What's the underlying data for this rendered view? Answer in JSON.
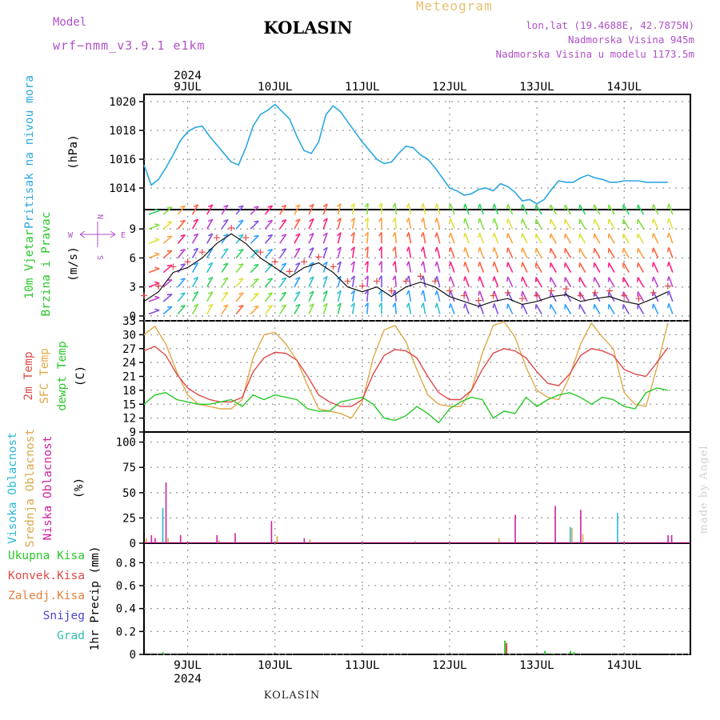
{
  "header": {
    "title": "KOLASIN",
    "meteogram": "Meteogram",
    "model_label": "Model",
    "model_name": "wrf−nmm_v3.9.1  e1km",
    "coords": "lon,lat (19.4688E, 42.7875N)",
    "altitude": "Nadmorska Visina 945m",
    "model_altitude": "Nadmorska Visina u modelu 1173.5m",
    "year": "2024"
  },
  "footer": {
    "location": "KOLASIN",
    "made_by": "made by Angel"
  },
  "days": [
    "9JUL",
    "10JUL",
    "11JUL",
    "12JUL",
    "13JUL",
    "14JUL"
  ],
  "panel_labels": {
    "pressure": [
      "Pritisak na nivou mora",
      "(hPa)"
    ],
    "wind": [
      "10m Vjetar",
      "Brzina i Pravac",
      "(m/s)"
    ],
    "compass": {
      "n": "N",
      "s": "S",
      "e": "E",
      "w": "W"
    },
    "temp": [
      "2m Temp",
      "SFC Temp",
      "dewpt Temp",
      "(C)"
    ],
    "cloud": [
      "Visoka Oblacnost",
      "Srednja Oblacnost",
      "Niska Oblacnost",
      "(%)"
    ],
    "precip": [
      "Ukupna Kisa",
      "Konvek.Kisa",
      "Zaledj.Kisa",
      "Snijeg",
      "Grad",
      "1hr Precip (mm)"
    ]
  },
  "colors": {
    "pressure": "#2aa8e0",
    "temp2m": "#e04848",
    "sfc": "#e0a848",
    "dewpt": "#28c828",
    "high_cloud": "#28b8d8",
    "mid_cloud": "#d8a848",
    "low_cloud": "#d020a0",
    "total_rain": "#28c828",
    "conv_rain": "#e04848",
    "frz_rain": "#e88040",
    "snow": "#4848d0",
    "hail": "#30c0b0",
    "title_purple": "#b050c8"
  },
  "chart_data": [
    {
      "type": "line",
      "title": "Pritisak na nivou mora",
      "ylabel": "(hPa)",
      "x_unit": "hours from 2024-07-08 12:00 UTC",
      "ylim": [
        1012.5,
        1020.5
      ],
      "yticks": [
        1014,
        1016,
        1018,
        1020
      ],
      "grid": true,
      "series": [
        {
          "name": "Pritisak na nivou mora",
          "x": [
            0,
            2,
            4,
            6,
            8,
            10,
            12,
            14,
            16,
            18,
            20,
            22,
            24,
            26,
            28,
            30,
            32,
            34,
            36,
            38,
            40,
            42,
            44,
            46,
            48,
            50,
            52,
            54,
            56,
            58,
            60,
            62,
            64,
            66,
            68,
            70,
            72,
            74,
            76,
            78,
            80,
            82,
            84,
            86,
            88,
            90,
            92,
            94,
            96,
            98,
            100,
            102,
            104,
            106,
            108,
            110,
            112,
            114,
            116,
            118,
            120,
            122,
            124,
            126,
            128,
            130,
            132,
            134,
            136,
            138,
            140,
            142,
            144
          ],
          "values": [
            1015.6,
            1014.2,
            1014.6,
            1015.4,
            1016.3,
            1017.3,
            1017.9,
            1018.2,
            1018.3,
            1017.6,
            1017.0,
            1016.4,
            1015.8,
            1015.6,
            1016.8,
            1018.3,
            1019.1,
            1019.4,
            1019.8,
            1019.3,
            1018.8,
            1017.6,
            1016.6,
            1016.4,
            1017.2,
            1019.1,
            1019.7,
            1019.3,
            1018.6,
            1017.9,
            1017.2,
            1016.6,
            1016.0,
            1015.7,
            1015.8,
            1016.4,
            1016.9,
            1016.8,
            1016.3,
            1016.0,
            1015.4,
            1014.7,
            1014.0,
            1013.8,
            1013.5,
            1013.6,
            1013.9,
            1014.0,
            1013.8,
            1014.3,
            1014.1,
            1013.7,
            1013.1,
            1013.2,
            1012.9,
            1013.2,
            1013.9,
            1014.5,
            1014.4,
            1014.4,
            1014.7,
            1014.9,
            1014.7,
            1014.6,
            1014.4,
            1014.4,
            1014.5,
            1014.5,
            1014.5,
            1014.4,
            1014.4,
            1014.4,
            1014.4
          ]
        }
      ]
    },
    {
      "type": "line",
      "title": "10m Vjetar Brzina i Pravac",
      "ylabel": "(m/s)",
      "x_unit": "hours from 2024-07-08 12:00 UTC",
      "ylim": [
        -0.5,
        11
      ],
      "yticks": [
        0,
        3,
        6,
        9
      ],
      "grid": true,
      "series": [
        {
          "name": "speed",
          "x": [
            0,
            4,
            8,
            12,
            16,
            20,
            24,
            28,
            32,
            36,
            40,
            44,
            48,
            52,
            56,
            60,
            64,
            68,
            72,
            76,
            80,
            84,
            88,
            92,
            96,
            100,
            104,
            108,
            112,
            116,
            120,
            124,
            128,
            132,
            136,
            140,
            144
          ],
          "values": [
            1.5,
            2.5,
            4.5,
            5.0,
            6.0,
            7.5,
            8.5,
            7.5,
            6.0,
            5.0,
            4.0,
            5.0,
            5.5,
            4.5,
            3.0,
            2.5,
            3.0,
            2.0,
            3.0,
            3.5,
            3.0,
            2.0,
            1.5,
            1.0,
            1.5,
            1.8,
            1.2,
            1.5,
            2.0,
            2.2,
            1.5,
            1.8,
            2.0,
            1.5,
            1.2,
            1.8,
            2.5
          ]
        }
      ],
      "direction_deg": [
        200,
        220,
        230,
        240,
        240,
        235,
        230,
        225,
        230,
        235,
        240,
        245,
        250,
        255,
        260,
        265,
        270,
        275,
        280,
        280,
        285,
        290,
        290,
        290,
        290,
        295,
        295,
        300,
        300,
        300,
        300,
        300,
        300,
        300,
        300,
        295,
        290
      ]
    },
    {
      "type": "line",
      "title": "2m / SFC / dewpt Temp",
      "ylabel": "(C)",
      "x_unit": "hours from 2024-07-08 12:00 UTC",
      "ylim": [
        9,
        33
      ],
      "yticks": [
        9,
        12,
        15,
        18,
        21,
        24,
        27,
        30,
        33
      ],
      "grid": true,
      "series": [
        {
          "name": "2m Temp",
          "x": [
            0,
            3,
            6,
            9,
            12,
            15,
            18,
            21,
            24,
            27,
            30,
            33,
            36,
            39,
            42,
            45,
            48,
            51,
            54,
            57,
            60,
            63,
            66,
            69,
            72,
            75,
            78,
            81,
            84,
            87,
            90,
            93,
            96,
            99,
            102,
            105,
            108,
            111,
            114,
            117,
            120,
            123,
            126,
            129,
            132,
            135,
            138,
            141,
            144
          ],
          "values": [
            26.5,
            27.5,
            25.5,
            21.5,
            18.5,
            17.0,
            16.0,
            15.5,
            15.5,
            16.5,
            22.0,
            25.0,
            26.2,
            26.0,
            24.5,
            21.0,
            17.0,
            15.5,
            14.5,
            14.5,
            16.0,
            21.5,
            25.5,
            26.8,
            26.5,
            25.0,
            21.0,
            17.5,
            16.0,
            16.0,
            18.0,
            22.5,
            26.0,
            27.0,
            26.5,
            25.0,
            22.0,
            19.5,
            19.0,
            21.5,
            25.5,
            27.0,
            26.5,
            25.5,
            22.5,
            21.5,
            21.0,
            24.0,
            27.2
          ]
        },
        {
          "name": "SFC Temp",
          "x": [
            0,
            3,
            6,
            9,
            12,
            15,
            18,
            21,
            24,
            27,
            30,
            33,
            36,
            39,
            42,
            45,
            48,
            51,
            54,
            57,
            60,
            63,
            66,
            69,
            72,
            75,
            78,
            81,
            84,
            87,
            90,
            93,
            96,
            99,
            102,
            105,
            108,
            111,
            114,
            117,
            120,
            123,
            126,
            129,
            132,
            135,
            138,
            141,
            144
          ],
          "values": [
            30.0,
            31.8,
            28.0,
            22.0,
            17.0,
            15.0,
            14.5,
            14.0,
            14.0,
            16.0,
            25.0,
            30.0,
            30.5,
            28.0,
            24.5,
            19.0,
            14.0,
            13.5,
            13.0,
            12.0,
            15.5,
            25.0,
            31.0,
            32.0,
            28.5,
            22.5,
            17.0,
            15.0,
            14.5,
            14.5,
            18.0,
            26.0,
            32.0,
            32.8,
            29.5,
            23.0,
            18.0,
            16.5,
            16.0,
            21.0,
            28.0,
            32.5,
            29.5,
            27.0,
            17.5,
            15.0,
            14.5,
            23.0,
            32.5
          ]
        },
        {
          "name": "dewpt Temp",
          "x": [
            0,
            3,
            6,
            9,
            12,
            15,
            18,
            21,
            24,
            27,
            30,
            33,
            36,
            39,
            42,
            45,
            48,
            51,
            54,
            57,
            60,
            63,
            66,
            69,
            72,
            75,
            78,
            81,
            84,
            87,
            90,
            93,
            96,
            99,
            102,
            105,
            108,
            111,
            114,
            117,
            120,
            123,
            126,
            129,
            132,
            135,
            138,
            141,
            144
          ],
          "values": [
            15.0,
            17.0,
            17.5,
            16.0,
            15.5,
            15.0,
            15.0,
            15.5,
            16.0,
            14.5,
            17.0,
            16.0,
            17.0,
            16.5,
            16.0,
            14.0,
            13.5,
            13.5,
            15.5,
            16.0,
            16.5,
            15.0,
            12.0,
            11.5,
            12.5,
            14.5,
            13.0,
            11.0,
            14.0,
            15.5,
            16.5,
            16.0,
            12.0,
            13.5,
            13.0,
            16.5,
            14.5,
            16.0,
            17.0,
            17.5,
            16.5,
            15.0,
            16.5,
            16.0,
            14.5,
            14.0,
            17.5,
            18.5,
            18.0
          ]
        }
      ]
    },
    {
      "type": "bar",
      "title": "Oblacnost",
      "ylabel": "(%)",
      "x_unit": "hours from 2024-07-08 12:00 UTC",
      "ylim": [
        0,
        110
      ],
      "yticks": [
        0,
        25,
        50,
        75,
        100
      ],
      "grid": true,
      "series": [
        {
          "name": "Visoka Oblacnost",
          "x": [
            5,
            13,
            113,
            117,
            130
          ],
          "values": [
            35,
            1,
            1,
            16,
            30
          ]
        },
        {
          "name": "Srednja Oblacnost",
          "x": [
            0,
            6,
            20,
            36,
            45,
            74,
            97,
            117,
            120
          ],
          "values": [
            5,
            5,
            3,
            7,
            4,
            2,
            5,
            15,
            9
          ]
        },
        {
          "name": "Niska Oblacnost",
          "x": [
            1,
            2,
            5,
            9,
            19,
            24,
            34,
            43,
            101,
            112,
            119,
            143,
            144
          ],
          "values": [
            8,
            5,
            60,
            8,
            8,
            10,
            22,
            5,
            28,
            37,
            33,
            8,
            8
          ]
        }
      ]
    },
    {
      "type": "bar",
      "title": "1hr Precip",
      "ylabel": "1hr Precip (mm)",
      "x_unit": "hours from 2024-07-08 12:00 UTC",
      "ylim": [
        0,
        0.97
      ],
      "yticks": [
        0,
        0.2,
        0.4,
        0.6,
        0.8
      ],
      "grid": true,
      "series": [
        {
          "name": "Ukupna Kisa",
          "x": [
            5,
            99,
            110,
            112,
            117,
            118
          ],
          "values": [
            0.02,
            0.12,
            0.03,
            0.01,
            0.03,
            0.02
          ]
        },
        {
          "name": "Konvek.Kisa",
          "x": [
            99
          ],
          "values": [
            0.1
          ]
        }
      ]
    }
  ]
}
